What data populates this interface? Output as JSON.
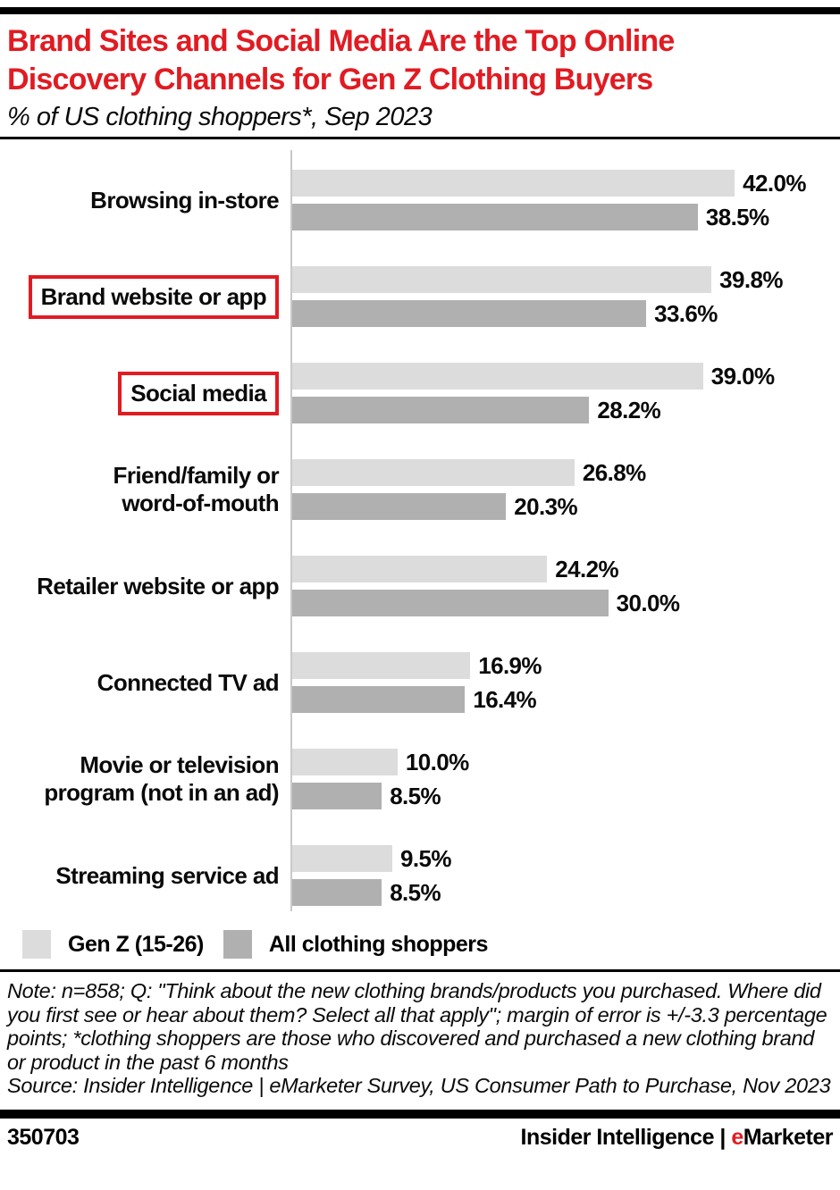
{
  "header": {
    "title": "Brand Sites and Social Media Are the Top Online\nDiscovery Channels for Gen Z Clothing Buyers",
    "subtitle": "% of US clothing shoppers*, Sep 2023"
  },
  "colors": {
    "accent_red": "#e11b22",
    "genz_bar": "#dcdcdc",
    "all_shoppers_bar": "#b0b0b0",
    "axis_line": "#c9c9c9",
    "text": "#000000"
  },
  "chart_data": {
    "type": "bar",
    "orientation": "horizontal",
    "title": "Brand Sites and Social Media Are the Top Online Discovery Channels for Gen Z Clothing Buyers",
    "subtitle": "% of US clothing shoppers*, Sep 2023",
    "categories": [
      "Browsing in-store",
      "Brand website or app",
      "Social media",
      "Friend/family or\nword-of-mouth",
      "Retailer website or app",
      "Connected TV ad",
      "Movie or television\nprogram (not in an ad)",
      "Streaming service ad"
    ],
    "highlighted_categories": [
      "Brand website or app",
      "Social media"
    ],
    "series": [
      {
        "name": "Gen Z (15-26)",
        "color": "#dcdcdc",
        "values": [
          42.0,
          39.8,
          39.0,
          26.8,
          24.2,
          16.9,
          10.0,
          9.5
        ]
      },
      {
        "name": "All clothing shoppers",
        "color": "#b0b0b0",
        "values": [
          38.5,
          33.6,
          28.2,
          20.3,
          30.0,
          16.4,
          8.5,
          8.5
        ]
      }
    ],
    "value_suffix": "%",
    "value_decimals": 1,
    "xlim": [
      0,
      52
    ],
    "grid": false,
    "legend_position": "bottom",
    "data_labels": true
  },
  "notes": {
    "note": "Note: n=858; Q: \"Think about the new clothing brands/products you purchased. Where did you first see or hear about them? Select all that apply\"; margin of error is +/-3.3 percentage points; *clothing shoppers are those who discovered and purchased a new clothing brand or product in the past 6 months",
    "source": "Source: Insider Intelligence | eMarketer Survey, US Consumer Path to Purchase, Nov 2023"
  },
  "footer": {
    "chart_id": "350703",
    "brand_left": "Insider Intelligence",
    "brand_separator": " | ",
    "brand_e": "e",
    "brand_rest": "Marketer"
  }
}
